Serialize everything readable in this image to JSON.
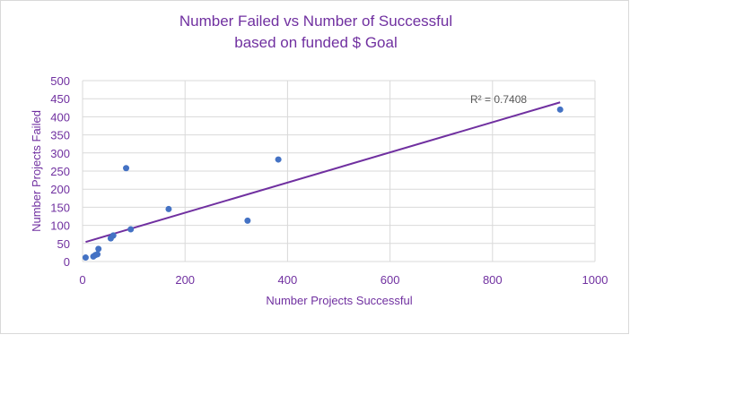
{
  "chart_data": {
    "type": "scatter",
    "title_line1": "Number Failed vs Number of Successful",
    "title_line2": "based on funded $ Goal",
    "xlabel": "Number  Projects Successful",
    "ylabel": "Number  Projects Failed",
    "xlim": [
      0,
      1000
    ],
    "ylim": [
      0,
      500
    ],
    "x_ticks": [
      0,
      200,
      400,
      600,
      800,
      1000
    ],
    "y_ticks": [
      0,
      50,
      100,
      150,
      200,
      250,
      300,
      350,
      400,
      450,
      500
    ],
    "grid": true,
    "legend": "none",
    "points": [
      {
        "x": 6,
        "y": 11
      },
      {
        "x": 21,
        "y": 14
      },
      {
        "x": 25,
        "y": 18
      },
      {
        "x": 29,
        "y": 20
      },
      {
        "x": 31,
        "y": 35
      },
      {
        "x": 55,
        "y": 64
      },
      {
        "x": 60,
        "y": 72
      },
      {
        "x": 85,
        "y": 258
      },
      {
        "x": 94,
        "y": 89
      },
      {
        "x": 168,
        "y": 145
      },
      {
        "x": 322,
        "y": 113
      },
      {
        "x": 382,
        "y": 282
      },
      {
        "x": 932,
        "y": 420
      }
    ],
    "trendline": {
      "type": "linear",
      "x_start": 6,
      "y_start": 54,
      "x_end": 932,
      "y_end": 440
    },
    "r_squared_label": "R² = 0.7408",
    "colors": {
      "points": "#4472c4",
      "trendline": "#7030a0",
      "text": "#7030a0",
      "grid": "#d9d9d9"
    }
  }
}
